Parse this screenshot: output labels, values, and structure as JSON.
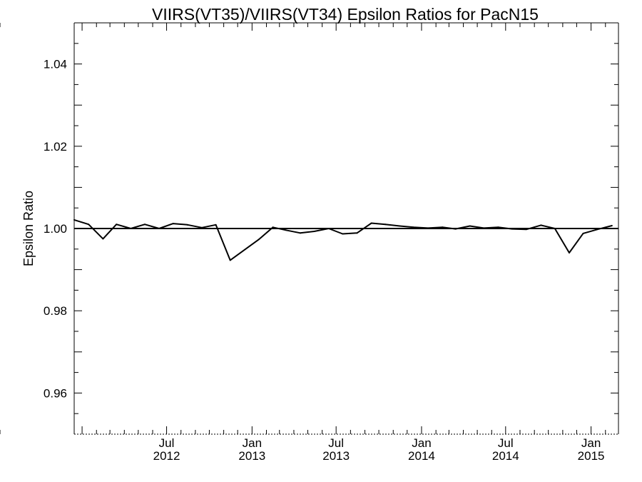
{
  "chart_data": {
    "type": "line",
    "title": "VIIRS(VT35)/VIIRS(VT34)  Epsilon Ratios for PacN15",
    "xlabel": "",
    "ylabel": "Epsilon Ratio",
    "xlim": [
      "2011-12-15",
      "2015-03-01"
    ],
    "ylim": [
      0.95,
      1.05
    ],
    "y_ticks": [
      0.96,
      0.98,
      1.0,
      1.02,
      1.04
    ],
    "y_tick_labels": [
      "0.96",
      "0.98",
      "1.00",
      "1.02",
      "1.04"
    ],
    "x_ticks": [
      {
        "date": "2012-07-01",
        "month": "Jul",
        "year": "2012"
      },
      {
        "date": "2013-01-01",
        "month": "Jan",
        "year": "2013"
      },
      {
        "date": "2013-07-01",
        "month": "Jul",
        "year": "2013"
      },
      {
        "date": "2014-01-01",
        "month": "Jan",
        "year": "2014"
      },
      {
        "date": "2014-07-01",
        "month": "Jul",
        "year": "2014"
      },
      {
        "date": "2015-01-01",
        "month": "Jan",
        "year": "2015"
      }
    ],
    "reference_line": 1.0,
    "grid": false,
    "series": [
      {
        "color": "#000000",
        "points": [
          {
            "x": "2011-12-15",
            "y": 1.0021
          },
          {
            "x": "2012-01-15",
            "y": 1.001
          },
          {
            "x": "2012-02-15",
            "y": 0.9975
          },
          {
            "x": "2012-03-15",
            "y": 1.001
          },
          {
            "x": "2012-04-15",
            "y": 1.0
          },
          {
            "x": "2012-05-15",
            "y": 1.001
          },
          {
            "x": "2012-06-15",
            "y": 1.0
          },
          {
            "x": "2012-07-15",
            "y": 1.0012
          },
          {
            "x": "2012-08-15",
            "y": 1.0009
          },
          {
            "x": "2012-09-15",
            "y": 1.0002
          },
          {
            "x": "2012-10-15",
            "y": 1.0009
          },
          {
            "x": "2012-11-15",
            "y": 0.9923
          },
          {
            "x": "2013-01-15",
            "y": 0.9973
          },
          {
            "x": "2013-02-15",
            "y": 1.0003
          },
          {
            "x": "2013-03-15",
            "y": 0.9996
          },
          {
            "x": "2013-04-15",
            "y": 0.9989
          },
          {
            "x": "2013-05-15",
            "y": 0.9993
          },
          {
            "x": "2013-06-15",
            "y": 1.0
          },
          {
            "x": "2013-07-15",
            "y": 0.9987
          },
          {
            "x": "2013-08-15",
            "y": 0.9989
          },
          {
            "x": "2013-09-15",
            "y": 1.0013
          },
          {
            "x": "2013-10-15",
            "y": 1.001
          },
          {
            "x": "2013-11-15",
            "y": 1.0006
          },
          {
            "x": "2013-12-15",
            "y": 1.0003
          },
          {
            "x": "2014-01-15",
            "y": 1.0001
          },
          {
            "x": "2014-02-15",
            "y": 1.0003
          },
          {
            "x": "2014-03-15",
            "y": 0.9999
          },
          {
            "x": "2014-04-15",
            "y": 1.0006
          },
          {
            "x": "2014-05-15",
            "y": 1.0001
          },
          {
            "x": "2014-06-15",
            "y": 1.0003
          },
          {
            "x": "2014-07-15",
            "y": 0.9999
          },
          {
            "x": "2014-08-15",
            "y": 0.9998
          },
          {
            "x": "2014-09-15",
            "y": 1.0008
          },
          {
            "x": "2014-10-15",
            "y": 1.0
          },
          {
            "x": "2014-11-15",
            "y": 0.9941
          },
          {
            "x": "2014-12-15",
            "y": 0.9988
          },
          {
            "x": "2015-01-15",
            "y": 0.9998
          },
          {
            "x": "2015-02-15",
            "y": 1.0007
          }
        ]
      }
    ]
  }
}
